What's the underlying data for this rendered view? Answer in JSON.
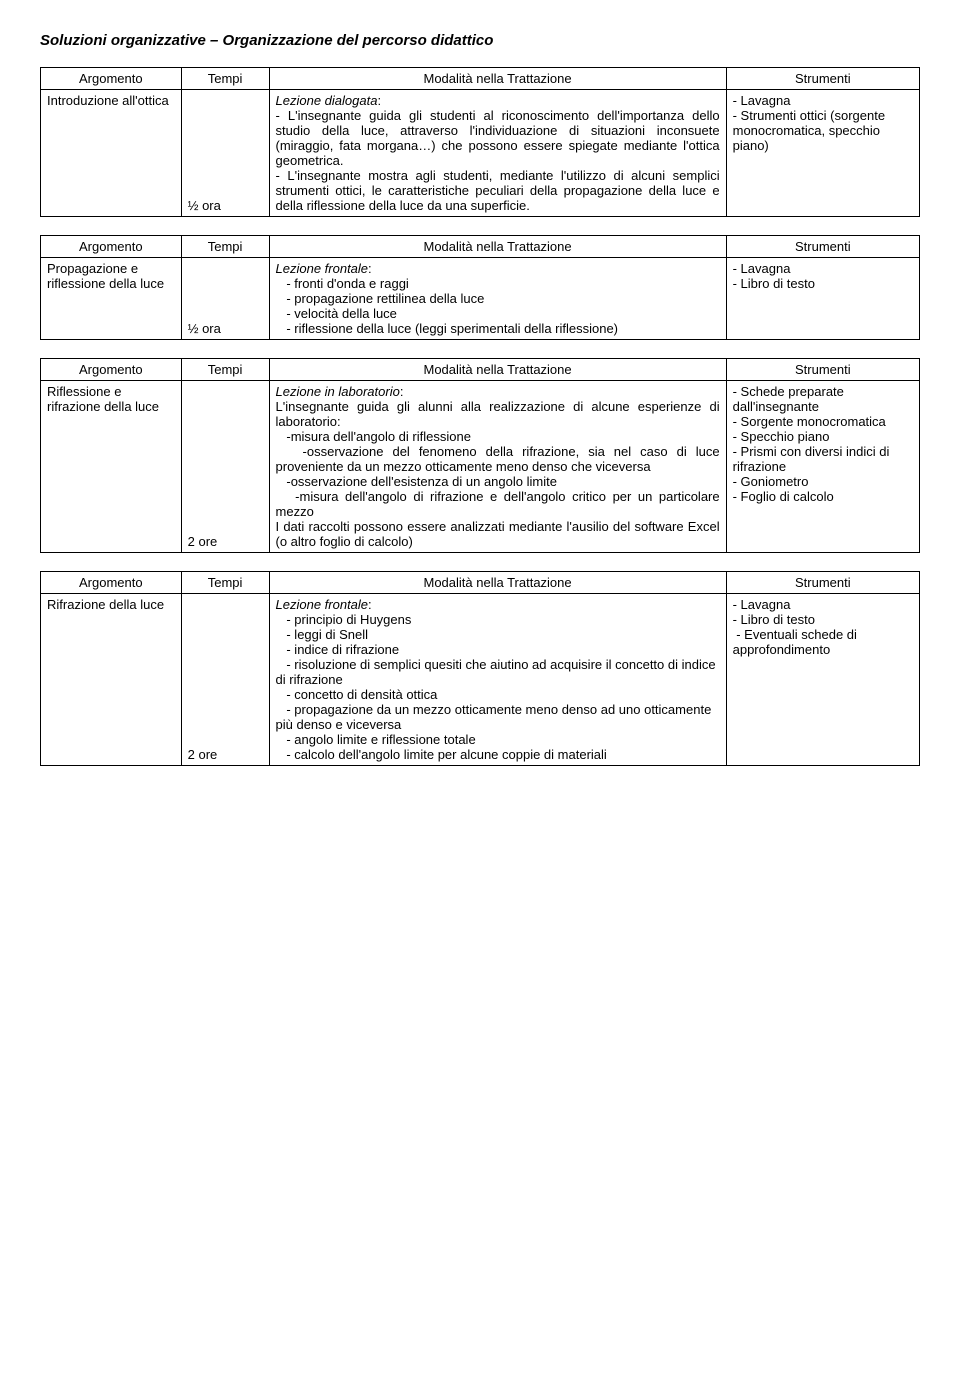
{
  "title": "Soluzioni organizzative – Organizzazione del percorso didattico",
  "headers": {
    "argomento": "Argomento",
    "tempi": "Tempi",
    "modalita": "Modalità nella Trattazione",
    "strumenti": "Strumenti"
  },
  "tables": [
    {
      "argomento": "Introduzione all'ottica",
      "tempi": "½ ora",
      "modalita_title": "Lezione dialogata",
      "modalita_body": ":\n- L'insegnante guida gli studenti al riconoscimento dell'importanza dello studio della luce, attraverso l'individuazione di situazioni inconsuete (miraggio, fata morgana…) che possono essere spiegate mediante l'ottica geometrica.\n- L'insegnante mostra agli studenti, mediante l'utilizzo di alcuni semplici strumenti ottici, le caratteristiche peculiari della propagazione della luce e della riflessione della luce da una superficie.",
      "strumenti": "- Lavagna\n- Strumenti ottici (sorgente monocromatica, specchio piano)"
    },
    {
      "argomento": "Propagazione e riflessione della luce",
      "tempi": "½ ora",
      "modalita_title": "Lezione frontale",
      "modalita_body": ":\n   - fronti d'onda e raggi\n   - propagazione rettilinea della luce\n   - velocità della luce\n   - riflessione della luce (leggi sperimentali della riflessione)",
      "strumenti": "- Lavagna\n- Libro di testo"
    },
    {
      "argomento": "Riflessione e rifrazione della luce",
      "tempi": "2 ore",
      "modalita_title": "Lezione in laboratorio",
      "modalita_body": ":\nL'insegnante guida gli alunni alla realizzazione di alcune esperienze di laboratorio:\n   -misura dell'angolo di riflessione\n   -osservazione del fenomeno della rifrazione, sia nel caso di luce proveniente da un mezzo otticamente meno denso che viceversa\n   -osservazione dell'esistenza di un angolo limite\n   -misura dell'angolo di rifrazione e dell'angolo critico per un particolare mezzo\nI dati raccolti possono essere analizzati mediante l'ausilio del software Excel (o altro foglio di calcolo)",
      "strumenti": "- Schede preparate dall'insegnante\n- Sorgente monocromatica\n- Specchio piano\n- Prismi con diversi indici di rifrazione\n- Goniometro\n- Foglio di calcolo"
    },
    {
      "argomento": "Rifrazione della luce",
      "tempi": "2 ore",
      "modalita_title": "Lezione frontale",
      "modalita_body": ":\n   - principio di Huygens\n   - leggi di Snell\n   - indice di rifrazione\n   - risoluzione di semplici quesiti che aiutino ad acquisire il concetto di indice di rifrazione\n   - concetto di densità ottica\n   - propagazione da un mezzo otticamente meno denso ad uno otticamente più denso e viceversa\n   - angolo limite e riflessione totale\n   - calcolo dell'angolo limite per alcune coppie di materiali",
      "strumenti": "- Lavagna\n- Libro di testo\n - Eventuali schede di approfondimento"
    }
  ]
}
